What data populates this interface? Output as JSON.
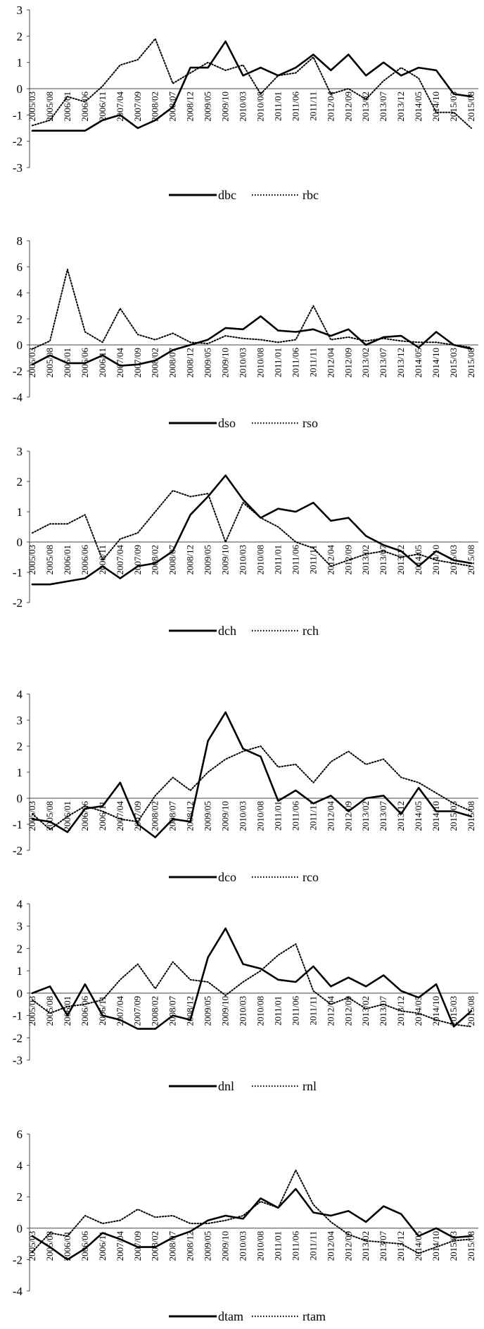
{
  "chart_data": [
    {
      "type": "line",
      "x": [
        "2005/03",
        "2005/08",
        "2006/01",
        "2006/06",
        "2006/11",
        "2007/04",
        "2007/09",
        "2008/02",
        "2008/07",
        "2008/12",
        "2009/05",
        "2009/10",
        "2010/03",
        "2010/08",
        "2011/01",
        "2011/06",
        "2011/11",
        "2012/04",
        "2012/09",
        "2013/02",
        "2013/07",
        "2013/12",
        "2014/05",
        "2014/10",
        "2015/03",
        "2015/08"
      ],
      "series": [
        {
          "name": "dbc",
          "style": "solid",
          "values": [
            -1.6,
            -1.6,
            -1.6,
            -1.6,
            -1.2,
            -1.0,
            -1.5,
            -1.2,
            -0.7,
            0.8,
            0.8,
            1.8,
            0.5,
            0.8,
            0.5,
            0.8,
            1.3,
            0.7,
            1.3,
            0.5,
            1.0,
            0.5,
            0.8,
            0.7,
            -0.2,
            -0.3
          ]
        },
        {
          "name": "rbc",
          "style": "dotted",
          "values": [
            -1.4,
            -1.2,
            -0.3,
            -0.5,
            0.1,
            0.9,
            1.1,
            1.9,
            0.2,
            0.6,
            1.0,
            0.7,
            0.9,
            -0.2,
            0.5,
            0.6,
            1.2,
            -0.2,
            0.0,
            -0.4,
            0.3,
            0.8,
            0.4,
            -0.9,
            -0.9,
            -1.5
          ]
        }
      ],
      "ylim": [
        -3,
        3
      ],
      "yticks": [
        -3,
        -2,
        -1,
        0,
        1,
        2,
        3
      ]
    },
    {
      "type": "line",
      "x": [
        "2005/03",
        "2005/08",
        "2006/01",
        "2006/06",
        "2006/11",
        "2007/04",
        "2007/09",
        "2008/02",
        "2008/07",
        "2008/12",
        "2009/05",
        "2009/10",
        "2010/03",
        "2010/08",
        "2011/01",
        "2011/06",
        "2011/11",
        "2012/04",
        "2012/09",
        "2013/02",
        "2013/07",
        "2013/12",
        "2014/05",
        "2014/10",
        "2015/03",
        "2015/08"
      ],
      "series": [
        {
          "name": "dso",
          "style": "solid",
          "values": [
            -1.5,
            -0.8,
            -1.4,
            -1.4,
            -0.8,
            -1.6,
            -1.5,
            -1.2,
            -0.4,
            0.0,
            0.4,
            1.3,
            1.2,
            2.2,
            1.1,
            1.0,
            1.2,
            0.7,
            1.2,
            0.0,
            0.6,
            0.7,
            -0.2,
            1.0,
            0.0,
            -0.3
          ]
        },
        {
          "name": "rso",
          "style": "dotted",
          "values": [
            -0.3,
            0.3,
            5.8,
            1.0,
            0.2,
            2.8,
            0.8,
            0.4,
            0.9,
            0.2,
            0.1,
            0.7,
            0.5,
            0.4,
            0.2,
            0.4,
            3.0,
            0.4,
            0.6,
            0.3,
            0.5,
            0.3,
            0.2,
            0.2,
            0.0,
            -0.2
          ]
        }
      ],
      "ylim": [
        -4,
        8
      ],
      "yticks": [
        -4,
        -2,
        0,
        2,
        4,
        6,
        8
      ]
    },
    {
      "type": "line",
      "x": [
        "2005/03",
        "2005/08",
        "2006/01",
        "2006/06",
        "2006/11",
        "2007/04",
        "2007/09",
        "2008/02",
        "2008/07",
        "2008/12",
        "2009/05",
        "2009/10",
        "2010/03",
        "2010/08",
        "2011/01",
        "2011/06",
        "2011/11",
        "2012/04",
        "2012/09",
        "2013/02",
        "2013/07",
        "2013/12",
        "2014/05",
        "2014/10",
        "2015/03",
        "2015/08"
      ],
      "series": [
        {
          "name": "dch",
          "style": "solid",
          "values": [
            -1.4,
            -1.4,
            -1.3,
            -1.2,
            -0.8,
            -1.2,
            -0.8,
            -0.7,
            -0.3,
            0.9,
            1.5,
            2.2,
            1.4,
            0.8,
            1.1,
            1.0,
            1.3,
            0.7,
            0.8,
            0.2,
            -0.1,
            -0.3,
            -0.8,
            -0.3,
            -0.6,
            -0.7
          ]
        },
        {
          "name": "rch",
          "style": "dotted",
          "values": [
            0.3,
            0.6,
            0.6,
            0.9,
            -0.6,
            0.1,
            0.3,
            1.0,
            1.7,
            1.5,
            1.6,
            0.0,
            1.3,
            0.8,
            0.5,
            0.0,
            -0.2,
            -0.8,
            -0.6,
            -0.4,
            -0.3,
            -0.5,
            -0.4,
            -0.6,
            -0.7,
            -0.8
          ]
        }
      ],
      "ylim": [
        -2,
        3
      ],
      "yticks": [
        -2,
        -1,
        0,
        1,
        2,
        3
      ]
    },
    {
      "type": "line",
      "x": [
        "2005/03",
        "2005/08",
        "2006/01",
        "2006/06",
        "2006/11",
        "2007/04",
        "2007/09",
        "2008/02",
        "2008/07",
        "2008/12",
        "2009/05",
        "2009/10",
        "2010/03",
        "2010/08",
        "2011/01",
        "2011/06",
        "2011/11",
        "2012/04",
        "2012/09",
        "2013/02",
        "2013/07",
        "2013/12",
        "2014/05",
        "2014/10",
        "2015/03",
        "2015/08"
      ],
      "series": [
        {
          "name": "dco",
          "style": "solid",
          "values": [
            -0.8,
            -0.9,
            -1.3,
            -0.4,
            -0.3,
            0.6,
            -1.0,
            -1.5,
            -0.8,
            -0.9,
            2.2,
            3.3,
            1.9,
            1.6,
            -0.1,
            0.3,
            -0.2,
            0.1,
            -0.5,
            0.0,
            0.1,
            -0.6,
            0.4,
            -0.5,
            -0.5,
            -0.7
          ]
        },
        {
          "name": "rco",
          "style": "dotted",
          "values": [
            -0.6,
            -1.2,
            -0.7,
            -0.3,
            -0.5,
            -0.8,
            -0.9,
            0.1,
            0.8,
            0.3,
            1.0,
            1.5,
            1.8,
            2.0,
            1.2,
            1.3,
            0.6,
            1.4,
            1.8,
            1.3,
            1.5,
            0.8,
            0.6,
            0.2,
            -0.2,
            -0.5
          ]
        }
      ],
      "ylim": [
        -2,
        4
      ],
      "yticks": [
        -2,
        -1,
        0,
        1,
        2,
        3,
        4
      ]
    },
    {
      "type": "line",
      "x": [
        "2005/03",
        "2005/08",
        "2006/01",
        "2006/06",
        "2006/11",
        "2007/04",
        "2007/09",
        "2008/02",
        "2008/07",
        "2008/12",
        "2009/05",
        "2009/10",
        "2010/03",
        "2010/08",
        "2011/01",
        "2011/06",
        "2011/11",
        "2012/04",
        "2012/09",
        "2013/02",
        "2013/07",
        "2013/12",
        "2014/05",
        "2014/10",
        "2015/03",
        "2015/08"
      ],
      "series": [
        {
          "name": "dnl",
          "style": "solid",
          "values": [
            0.0,
            0.3,
            -1.0,
            0.4,
            -1.0,
            -1.2,
            -1.6,
            -1.6,
            -1.0,
            -1.2,
            1.6,
            2.9,
            1.3,
            1.1,
            0.6,
            0.5,
            1.2,
            0.3,
            0.7,
            0.3,
            0.8,
            0.1,
            -0.2,
            0.4,
            -1.5,
            -0.8
          ]
        },
        {
          "name": "rnl",
          "style": "dotted",
          "values": [
            -0.3,
            -0.9,
            -0.6,
            -0.5,
            -0.3,
            0.6,
            1.3,
            0.2,
            1.4,
            0.6,
            0.5,
            -0.1,
            0.5,
            1.0,
            1.7,
            2.2,
            0.1,
            -0.5,
            -0.2,
            -0.7,
            -0.5,
            -0.8,
            -0.9,
            -1.2,
            -1.4,
            -1.5
          ]
        }
      ],
      "ylim": [
        -3,
        4
      ],
      "yticks": [
        -3,
        -2,
        -1,
        0,
        1,
        2,
        3,
        4
      ]
    },
    {
      "type": "line",
      "x": [
        "2005/03",
        "2005/08",
        "2006/01",
        "2006/06",
        "2006/11",
        "2007/04",
        "2007/09",
        "2008/02",
        "2008/07",
        "2008/12",
        "2009/05",
        "2009/10",
        "2010/03",
        "2010/08",
        "2011/01",
        "2011/06",
        "2011/11",
        "2012/04",
        "2012/09",
        "2013/02",
        "2013/07",
        "2013/12",
        "2014/05",
        "2014/10",
        "2015/03",
        "2015/08"
      ],
      "series": [
        {
          "name": "dtam",
          "style": "solid",
          "values": [
            -0.5,
            -1.2,
            -2.0,
            -1.3,
            -0.3,
            -0.7,
            -1.2,
            -1.2,
            -0.6,
            -0.2,
            0.5,
            0.8,
            0.6,
            1.9,
            1.3,
            2.5,
            1.0,
            0.8,
            1.1,
            0.4,
            1.4,
            0.9,
            -0.5,
            0.0,
            -0.6,
            -0.5
          ]
        },
        {
          "name": "rtam",
          "style": "dotted",
          "values": [
            -1.5,
            -0.3,
            -0.5,
            0.8,
            0.3,
            0.5,
            1.2,
            0.7,
            0.8,
            0.3,
            0.3,
            0.5,
            0.8,
            1.7,
            1.3,
            3.7,
            1.5,
            0.4,
            -0.4,
            -0.8,
            -0.9,
            -1.0,
            -1.6,
            -1.2,
            -0.8,
            -0.7
          ]
        }
      ],
      "ylim": [
        -4,
        6
      ],
      "yticks": [
        -4,
        -2,
        0,
        2,
        4,
        6
      ]
    }
  ]
}
